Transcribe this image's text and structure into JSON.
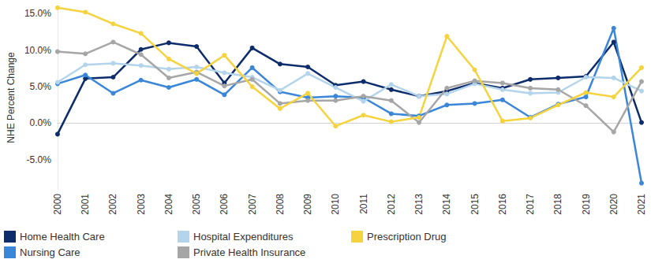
{
  "chart_data": {
    "type": "line",
    "y_label": "NHE Percent Change",
    "categories": [
      "2000",
      "2001",
      "2002",
      "2003",
      "2004",
      "2005",
      "2006",
      "2007",
      "2008",
      "2009",
      "2010",
      "2011",
      "2012",
      "2013",
      "2014",
      "2015",
      "2016",
      "2017",
      "2018",
      "2019",
      "2020",
      "2021"
    ],
    "series": [
      {
        "name": "Home Health Care",
        "color": "#0d2c6c",
        "marker": "circle",
        "values": [
          -1.5,
          6.1,
          6.3,
          10.1,
          11.0,
          10.5,
          5.5,
          10.3,
          8.1,
          7.7,
          5.2,
          5.7,
          4.6,
          3.7,
          4.4,
          5.5,
          4.8,
          6.0,
          6.2,
          6.4,
          11.1,
          0.1
        ]
      },
      {
        "name": "Nursing Care",
        "color": "#3a86d8",
        "marker": "circle",
        "values": [
          5.4,
          6.6,
          4.1,
          5.9,
          4.9,
          6.0,
          3.9,
          7.6,
          4.3,
          3.5,
          3.7,
          3.5,
          1.3,
          1.0,
          2.5,
          2.7,
          3.2,
          0.8,
          2.6,
          3.6,
          13.0,
          -8.2
        ]
      },
      {
        "name": "Hospital Expenditures",
        "color": "#b3d4ea",
        "marker": "circle",
        "values": [
          5.6,
          8.0,
          8.2,
          7.9,
          7.4,
          7.7,
          6.9,
          6.3,
          4.5,
          6.8,
          4.9,
          3.0,
          5.3,
          3.7,
          4.0,
          5.4,
          4.6,
          4.1,
          4.2,
          6.3,
          6.2,
          4.4
        ]
      },
      {
        "name": "Private Health Insurance",
        "color": "#a6a6a6",
        "marker": "circle",
        "values": [
          9.8,
          9.5,
          11.1,
          9.4,
          6.2,
          7.0,
          5.1,
          6.0,
          2.7,
          3.1,
          3.1,
          3.7,
          3.1,
          0.1,
          4.8,
          5.8,
          5.5,
          4.8,
          4.6,
          2.4,
          -1.2,
          5.7
        ]
      },
      {
        "name": "Prescription Drug",
        "color": "#f5d33f",
        "marker": "circle",
        "values": [
          15.8,
          15.2,
          13.6,
          12.3,
          8.8,
          6.8,
          9.3,
          5.0,
          2.0,
          4.1,
          -0.4,
          1.1,
          0.2,
          0.8,
          11.9,
          7.3,
          0.3,
          0.7,
          2.5,
          4.2,
          3.6,
          7.6
        ]
      }
    ],
    "ylim": [
      -9,
      16
    ],
    "yticks": [
      {
        "value": -5,
        "label": "-5.0%"
      },
      {
        "value": 0,
        "label": "0.0%"
      },
      {
        "value": 5,
        "label": "5.0%"
      },
      {
        "value": 10,
        "label": "10.0%"
      },
      {
        "value": 15,
        "label": "15.0%"
      }
    ],
    "grid": false,
    "legend": "bottom"
  }
}
